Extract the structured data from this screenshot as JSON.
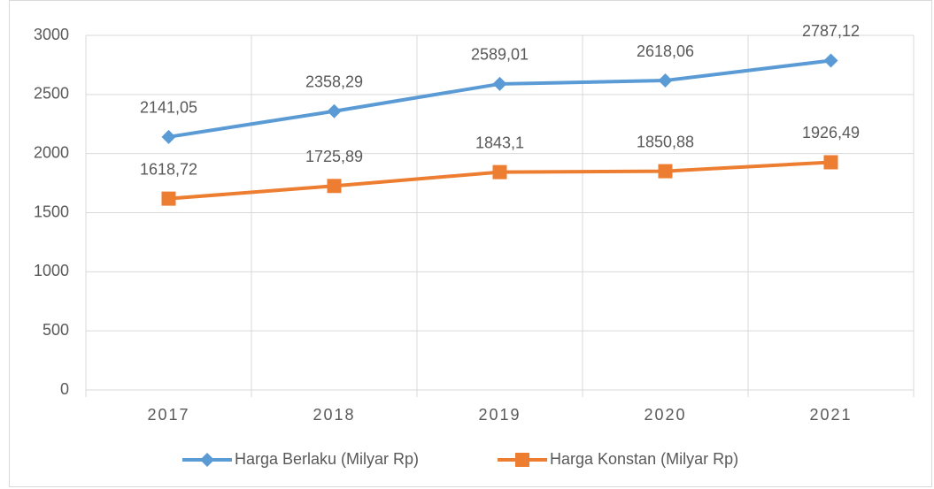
{
  "chart_data": {
    "type": "line",
    "categories": [
      "2017",
      "2018",
      "2019",
      "2020",
      "2021"
    ],
    "series": [
      {
        "name": "Harga Berlaku (Milyar Rp)",
        "color": "#5b9bd5",
        "marker": "diamond",
        "values": [
          2141.05,
          2358.29,
          2589.01,
          2618.06,
          2787.12
        ],
        "value_labels": [
          "2141,05",
          "2358,29",
          "2589,01",
          "2618,06",
          "2787,12"
        ]
      },
      {
        "name": "Harga Konstan (Milyar Rp)",
        "color": "#ed7d31",
        "marker": "square",
        "values": [
          1618.72,
          1725.89,
          1843.1,
          1850.88,
          1926.49
        ],
        "value_labels": [
          "1618,72",
          "1725,89",
          "1843,1",
          "1850,88",
          "1926,49"
        ]
      }
    ],
    "ylim": [
      0,
      3000
    ],
    "yticks": [
      0,
      500,
      1000,
      1500,
      2000,
      2500,
      3000
    ],
    "grid": true,
    "legend": "bottom"
  }
}
